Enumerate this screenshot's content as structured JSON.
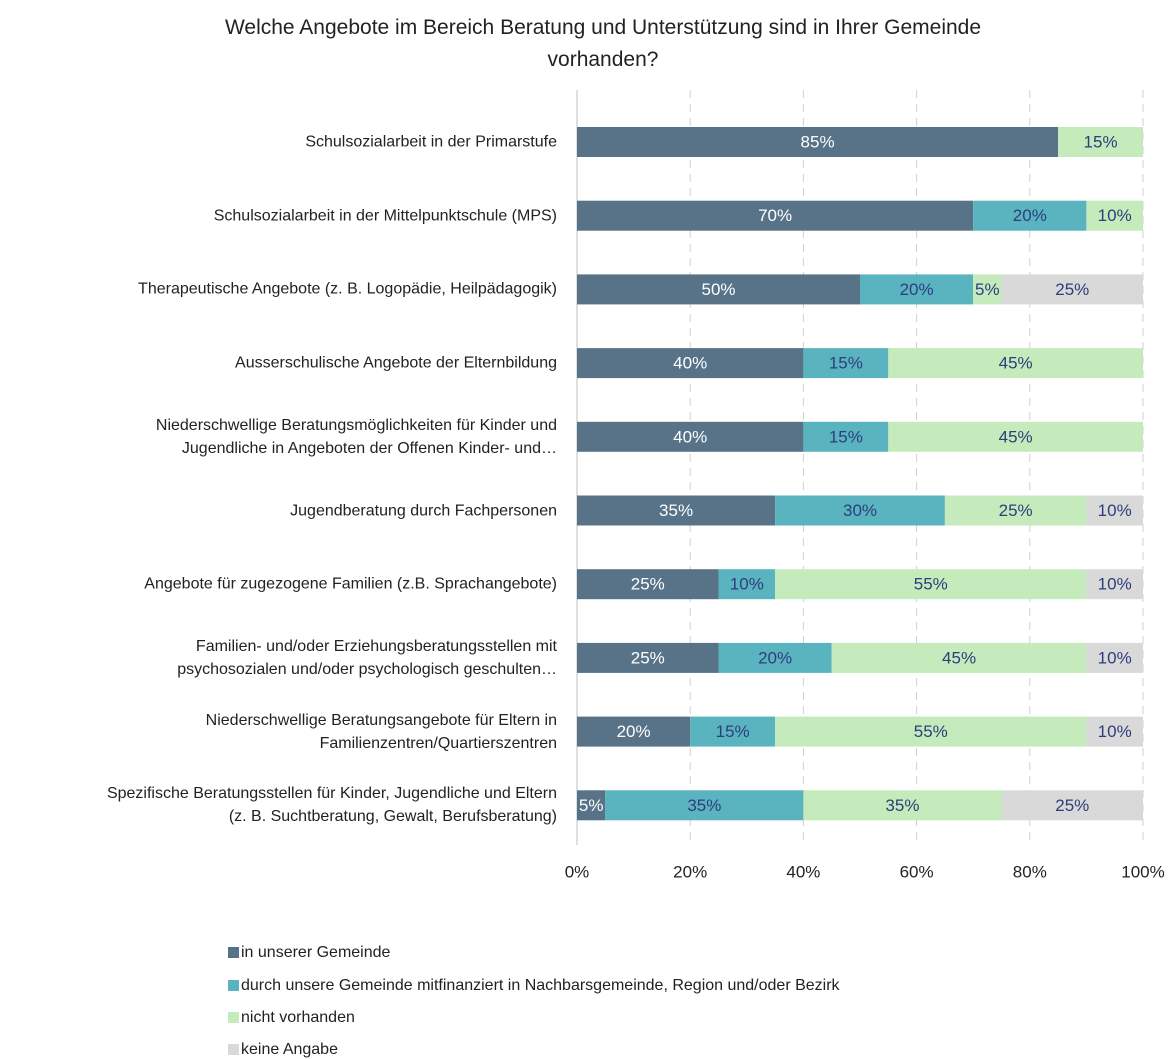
{
  "chart_data": {
    "type": "stacked_barh",
    "title": "Welche Angebote im Bereich Beratung und Unterstützung sind in Ihrer Gemeinde\nvorhanden?",
    "categories": [
      "Schulsozialarbeit in der Primarstufe",
      "Schulsozialarbeit in der Mittelpunktschule (MPS)",
      "Therapeutische Angebote (z. B. Logopädie, Heilpädagogik)",
      "Ausserschulische Angebote der Elternbildung",
      "Niederschwellige Beratungsmöglichkeiten für Kinder und\nJugendliche in Angeboten der Offenen Kinder- und…",
      "Jugendberatung durch Fachpersonen",
      "Angebote für zugezogene Familien (z.B. Sprachangebote)",
      "Familien- und/oder Erziehungsberatungsstellen mit\npsychosozialen und/oder psychologisch geschulten…",
      "Niederschwellige Beratungsangebote für Eltern in\nFamilienzentren/Quartierszentren",
      "Spezifische Beratungsstellen für Kinder, Jugendliche und Eltern\n(z. B. Suchtberatung, Gewalt, Berufsberatung)"
    ],
    "series": [
      {
        "name": "in unserer Gemeinde",
        "color": "#587388",
        "label_color": "#ffffff",
        "values": [
          85,
          70,
          50,
          40,
          40,
          35,
          25,
          25,
          20,
          5
        ],
        "value_labels": [
          "85%",
          "70%",
          "50%",
          "40%",
          "40%",
          "35%",
          "25%",
          "25%",
          "20%",
          "5%"
        ]
      },
      {
        "name": "durch unsere Gemeinde mitfinanziert in Nachbarsgemeinde, Region und/oder Bezirk",
        "color": "#5ab4c0",
        "label_color": "#2e3d7c",
        "values": [
          0,
          20,
          20,
          15,
          15,
          30,
          10,
          20,
          15,
          35
        ],
        "value_labels": [
          null,
          "20%",
          "20%",
          "15%",
          "15%",
          "30%",
          "10%",
          "20%",
          "15%",
          "35%"
        ]
      },
      {
        "name": "nicht vorhanden",
        "color": "#c5eabb",
        "label_color": "#2e3d7c",
        "values": [
          15,
          10,
          5,
          45,
          45,
          25,
          55,
          45,
          55,
          35
        ],
        "value_labels": [
          "15%",
          "10%",
          "5%",
          "45%",
          "45%",
          "25%",
          "55%",
          "45%",
          "55%",
          "35%"
        ]
      },
      {
        "name": "keine Angabe",
        "color": "#d9d9d9",
        "label_color": "#2e3d7c",
        "values": [
          0,
          0,
          25,
          0,
          0,
          10,
          10,
          10,
          10,
          25
        ],
        "value_labels": [
          null,
          null,
          "25%",
          null,
          null,
          "10%",
          "10%",
          "10%",
          "10%",
          "25%"
        ]
      }
    ],
    "xlim": [
      0,
      100
    ],
    "xticks": [
      {
        "value": 0,
        "label": "0%"
      },
      {
        "value": 20,
        "label": "20%"
      },
      {
        "value": 40,
        "label": "40%"
      },
      {
        "value": 60,
        "label": "60%"
      },
      {
        "value": 80,
        "label": "80%"
      },
      {
        "value": 100,
        "label": "100%"
      }
    ],
    "grid": true,
    "legend": "bottom"
  }
}
